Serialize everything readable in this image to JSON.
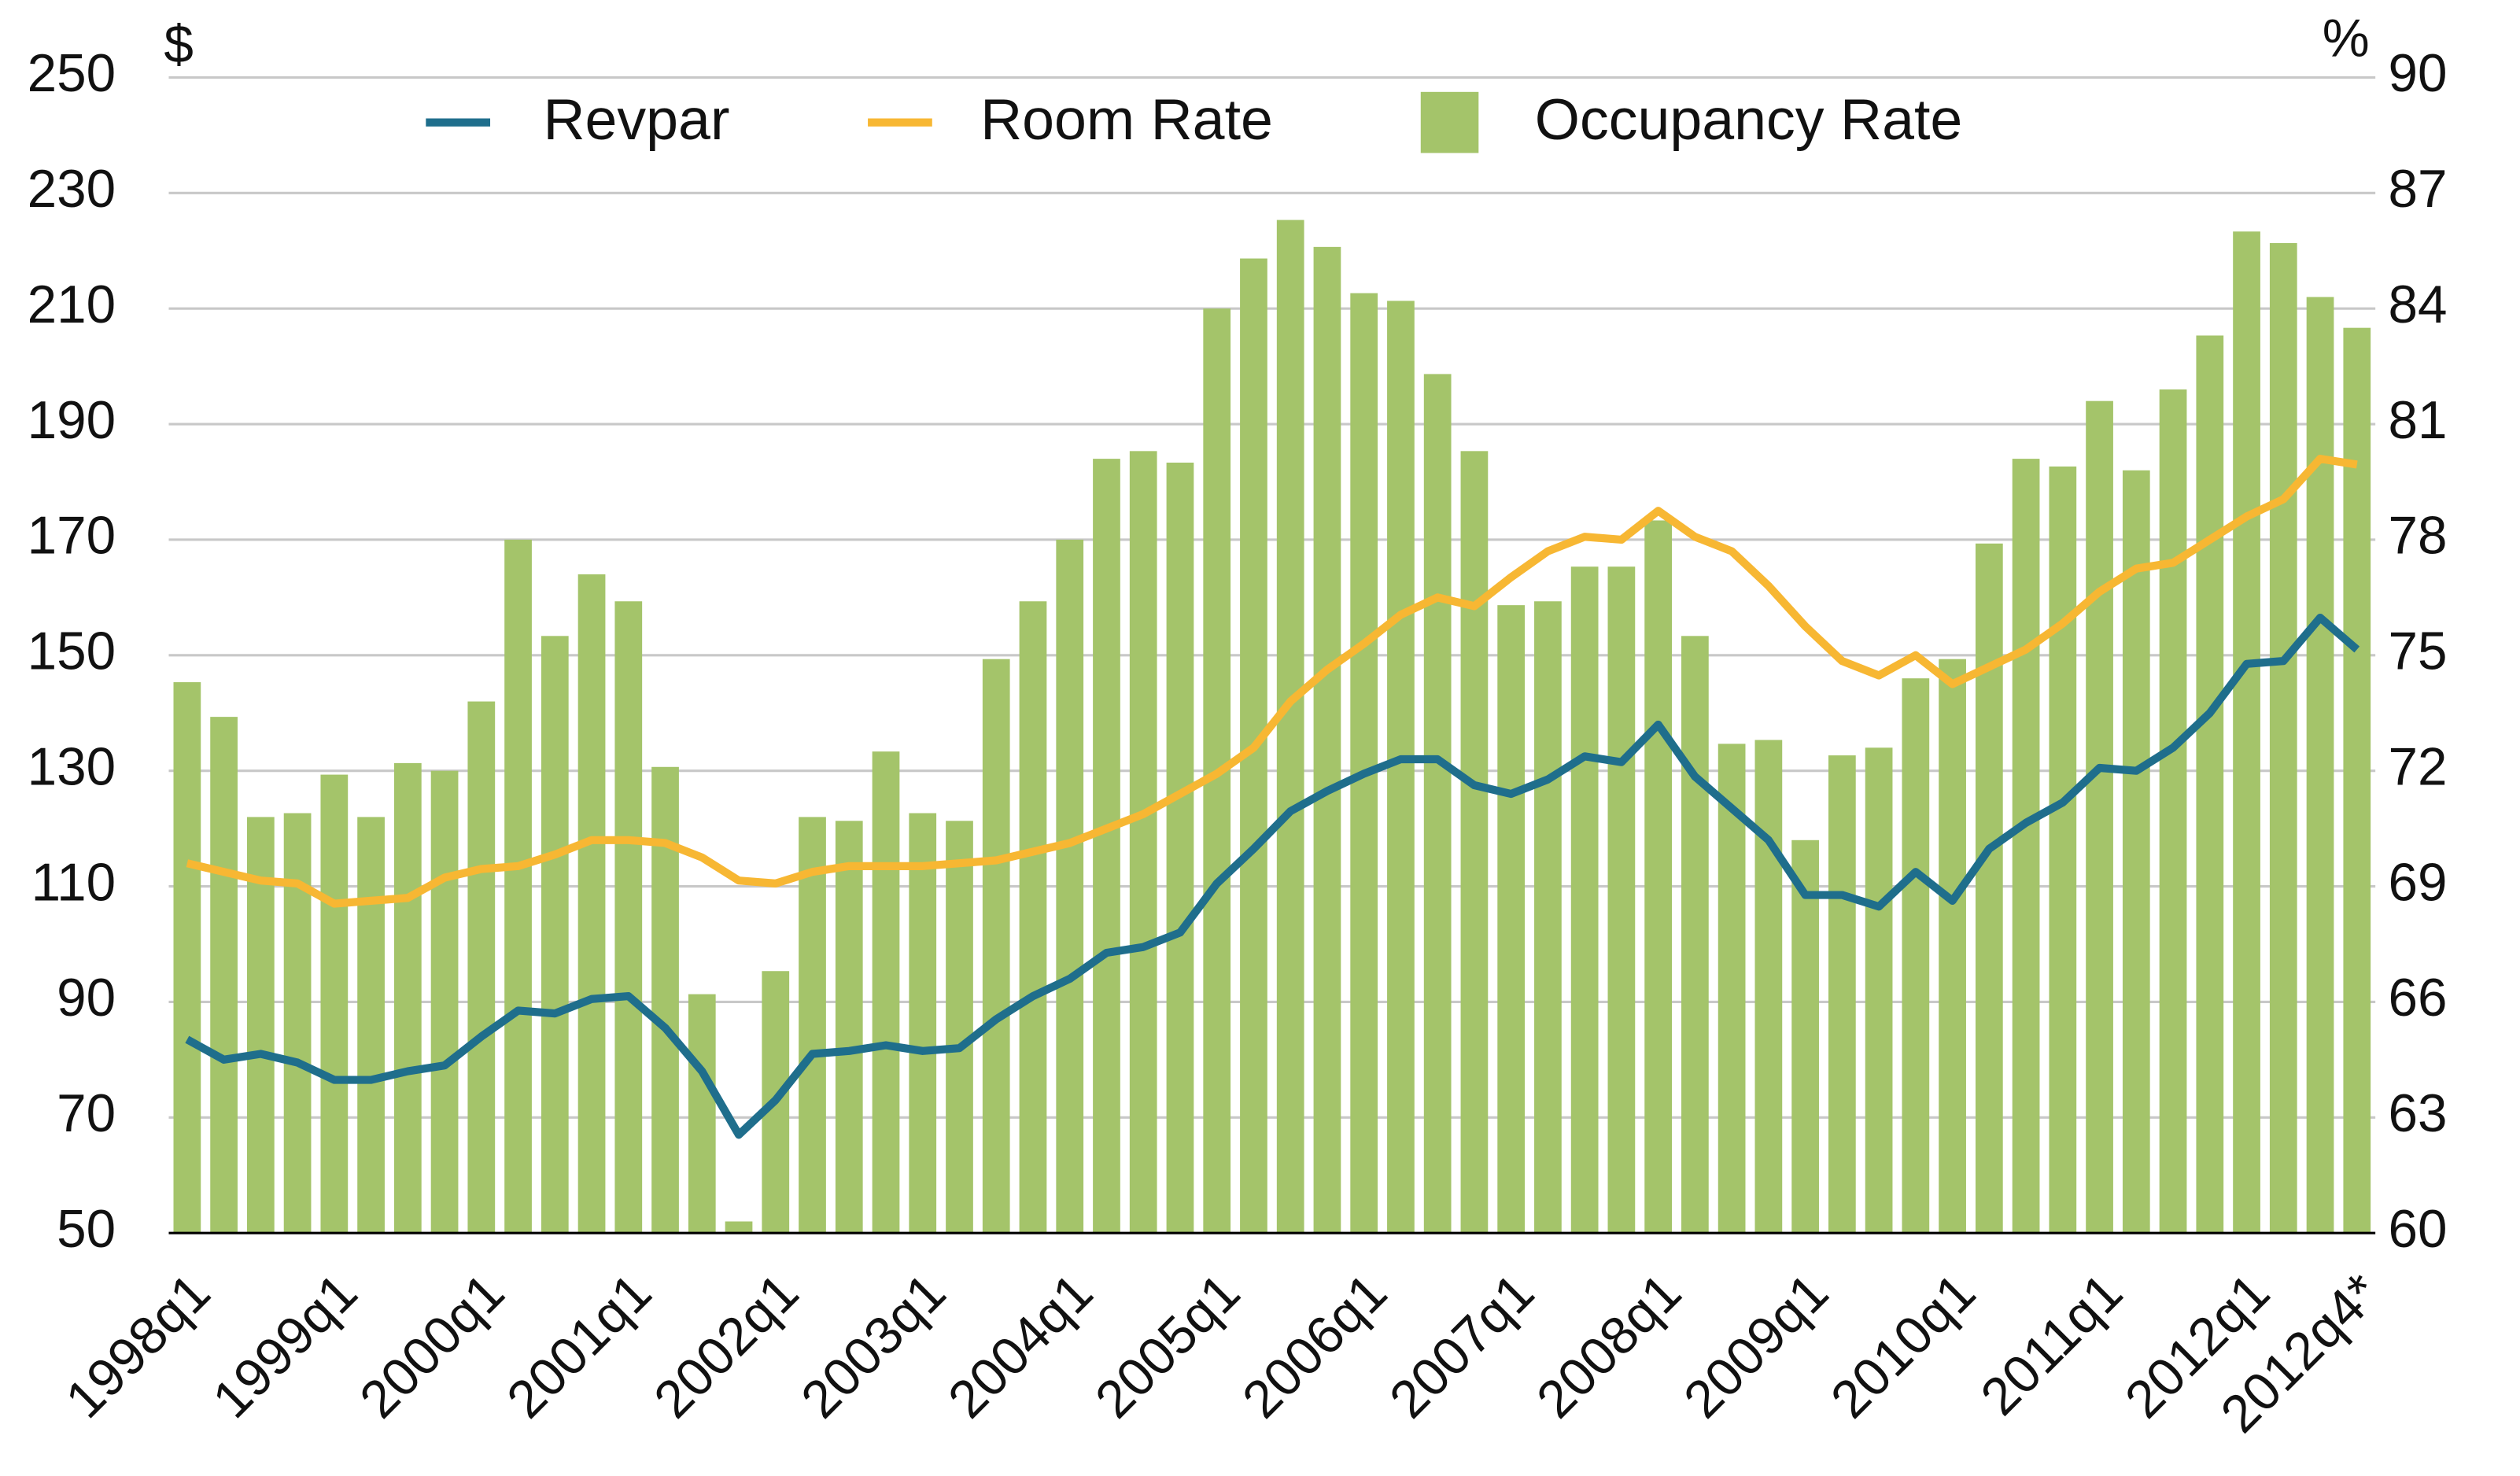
{
  "chart_data": {
    "type": "bar-line",
    "y_label": "$",
    "y2_label": "%",
    "categories": [
      "1998q1",
      null,
      null,
      null,
      "1999q1",
      null,
      null,
      null,
      "2000q1",
      null,
      null,
      null,
      "2001q1",
      null,
      null,
      null,
      "2002q1",
      null,
      null,
      null,
      "2003q1",
      null,
      null,
      null,
      "2004q1",
      null,
      null,
      null,
      "2005q1",
      null,
      null,
      null,
      "2006q1",
      null,
      null,
      null,
      "2007q1",
      null,
      null,
      null,
      "2008q1",
      null,
      null,
      null,
      "2009q1",
      null,
      null,
      null,
      "2010q1",
      null,
      null,
      null,
      "2011q1",
      null,
      null,
      null,
      "2012q1",
      null,
      null,
      "2012q4*"
    ],
    "series": [
      {
        "name": "Revpar",
        "type": "line",
        "color": "#1f6e8c",
        "values": [
          83.5,
          80,
          81,
          79.5,
          76.5,
          76.5,
          78,
          79,
          84,
          88.5,
          88,
          90.5,
          91,
          85.5,
          78,
          67,
          73,
          81,
          81.5,
          82.5,
          81.5,
          82,
          87,
          91,
          94,
          98.5,
          99.5,
          102,
          110.5,
          116.5,
          123,
          126.5,
          129.5,
          132,
          132,
          127.5,
          126,
          128.5,
          132.5,
          131.5,
          138,
          129,
          123.5,
          118,
          108.5,
          108.5,
          106.5,
          112.5,
          107.5,
          116.5,
          121,
          124.5,
          130.5,
          130,
          134,
          140,
          148.5,
          149,
          156.5,
          151
        ]
      },
      {
        "name": "Room Rate",
        "type": "line",
        "color": "#f7b733",
        "values": [
          114,
          112.5,
          111,
          110.5,
          107,
          107.5,
          108,
          111.5,
          113,
          113.5,
          115.5,
          118,
          118,
          117.5,
          115,
          111,
          110.5,
          112.5,
          113.5,
          113.5,
          113.5,
          114,
          114.5,
          116,
          117.5,
          120,
          122.5,
          126,
          129.5,
          134,
          142,
          147.5,
          152,
          157,
          160,
          158.5,
          163.5,
          168,
          170.5,
          170,
          175,
          170.5,
          168,
          162,
          155,
          149,
          146.5,
          150,
          145,
          148,
          151,
          155.5,
          161,
          165,
          166,
          170,
          174,
          177,
          184,
          183
        ]
      },
      {
        "name": "Occupancy Rate",
        "type": "bar",
        "axis": "y2",
        "color": "#a4c46a",
        "values": [
          74.3,
          73.4,
          70.8,
          70.9,
          71.9,
          70.8,
          72.2,
          72.0,
          73.8,
          78.0,
          75.5,
          77.1,
          76.4,
          72.1,
          66.2,
          60.3,
          66.8,
          70.8,
          70.7,
          72.5,
          70.9,
          70.7,
          74.9,
          76.4,
          78.0,
          80.1,
          80.3,
          80.0,
          84.0,
          85.3,
          86.3,
          85.6,
          84.4,
          84.2,
          82.3,
          80.3,
          76.3,
          76.4,
          77.3,
          77.3,
          78.5,
          75.5,
          72.7,
          72.8,
          70.2,
          72.4,
          72.6,
          74.4,
          74.9,
          77.9,
          80.1,
          79.9,
          81.6,
          79.8,
          81.9,
          83.3,
          86.0,
          85.7,
          84.3,
          83.5
        ]
      }
    ],
    "ylim": [
      50,
      250
    ],
    "yticks": [
      50,
      70,
      90,
      110,
      130,
      150,
      170,
      190,
      210,
      230,
      250
    ],
    "y2lim": [
      60,
      90
    ],
    "y2ticks": [
      60,
      63,
      66,
      69,
      72,
      75,
      78,
      81,
      84,
      87,
      90
    ],
    "grid": true
  }
}
